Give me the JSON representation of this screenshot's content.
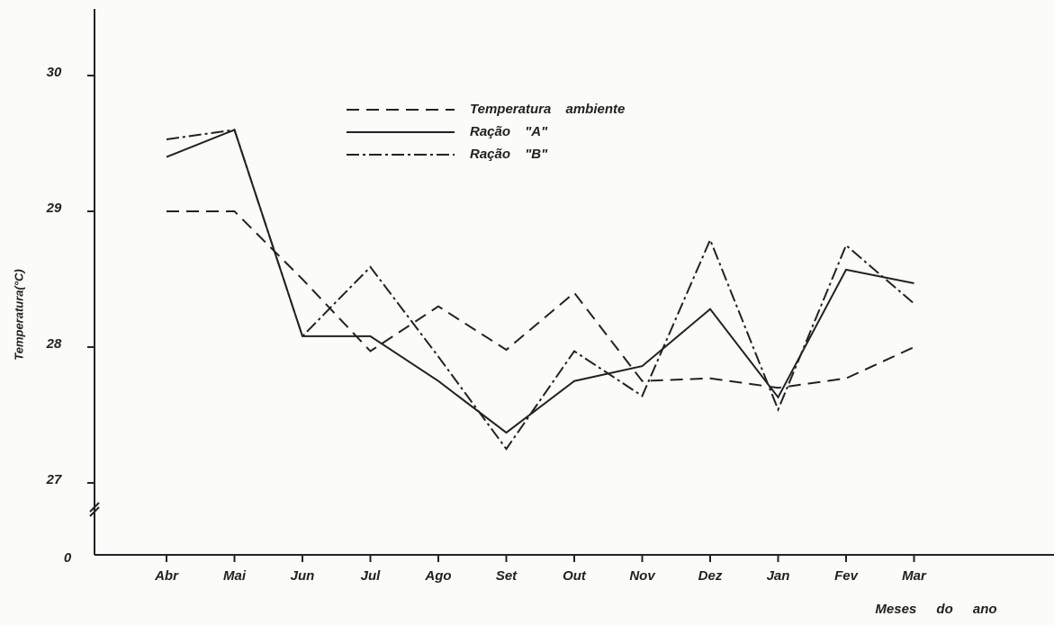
{
  "chart_data": {
    "type": "line",
    "xlabel": "Meses do ano",
    "ylabel": "Temperatura(°C)",
    "categories": [
      "Abr",
      "Mai",
      "Jun",
      "Jul",
      "Ago",
      "Set",
      "Out",
      "Nov",
      "Dez",
      "Jan",
      "Fev",
      "Mar"
    ],
    "series": [
      {
        "name": "Temperatura ambiente",
        "color": "#222",
        "dash": "14,8",
        "values": [
          29.0,
          29.0,
          28.5,
          27.97,
          28.3,
          27.98,
          28.4,
          27.75,
          27.77,
          27.7,
          27.77,
          28.0
        ]
      },
      {
        "name": "Ração \"A\"",
        "color": "#222",
        "dash": "none",
        "values": [
          29.4,
          29.6,
          28.08,
          28.08,
          27.75,
          27.37,
          27.75,
          27.86,
          28.28,
          27.63,
          28.57,
          28.47
        ]
      },
      {
        "name": "Ração \"B\"",
        "color": "#222",
        "dash": "14,4,3,4",
        "values": [
          29.53,
          29.6,
          28.08,
          28.59,
          27.93,
          27.25,
          27.97,
          27.64,
          28.79,
          27.54,
          28.75,
          28.32
        ]
      }
    ],
    "ylim": [
      26.47,
      30.49
    ],
    "yticks": [
      27,
      28,
      29,
      30
    ],
    "y_axis_break": true,
    "y_origin_label": "0",
    "legend": "top"
  }
}
